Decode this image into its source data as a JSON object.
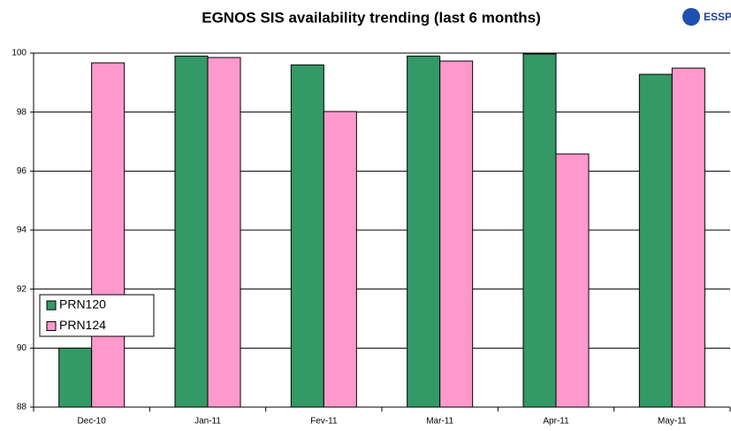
{
  "logo": "ESSP",
  "chart_data": {
    "type": "bar",
    "title": "EGNOS SIS availability trending (last 6 months)",
    "categories": [
      "Dec-10",
      "Jan-11",
      "Fev-11",
      "Mar-11",
      "Apr-11",
      "May-11"
    ],
    "series": [
      {
        "name": "PRN120",
        "color": "#339966",
        "values": [
          90.0,
          99.9,
          99.6,
          99.9,
          99.97,
          99.28
        ]
      },
      {
        "name": "PRN124",
        "color": "#ff99cc",
        "values": [
          99.67,
          99.85,
          98.02,
          99.73,
          96.58,
          99.49
        ]
      }
    ],
    "ylim": [
      88,
      100
    ],
    "yticks": [
      88,
      90,
      92,
      94,
      96,
      98,
      100
    ],
    "grid": true,
    "legend": "lower left"
  }
}
